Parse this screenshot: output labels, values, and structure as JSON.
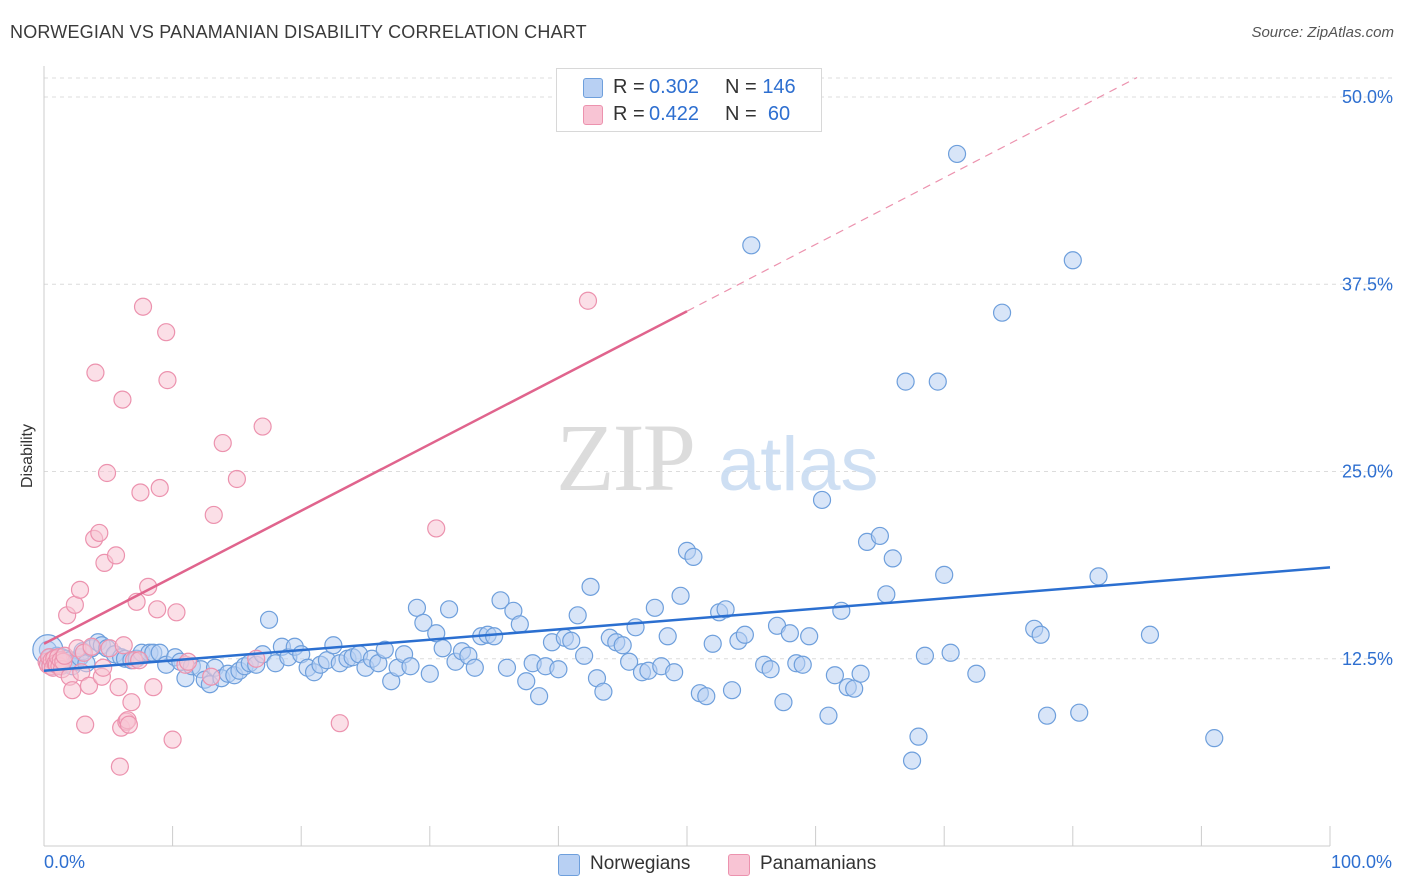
{
  "title": "NORWEGIAN VS PANAMANIAN DISABILITY CORRELATION CHART",
  "source": "Source: ZipAtlas.com",
  "watermark": {
    "zip": "ZIP",
    "atlas": "atlas"
  },
  "legend_top": {
    "rows": [
      {
        "r_label": "R =",
        "r_value": "0.302",
        "n_label": "N =",
        "n_value": "146"
      },
      {
        "r_label": "R =",
        "r_value": "0.422",
        "n_label": "N =",
        "n_value": "60"
      }
    ]
  },
  "legend_bottom": [
    "Norwegians",
    "Panamanians"
  ],
  "colors": {
    "norwegians_fill": "#b8d0f3",
    "norwegians_stroke": "#6e9fdc",
    "norwegians_line": "#2b6fd0",
    "panamanians_fill": "#f8c4d4",
    "panamanians_stroke": "#ec92ae",
    "panamanians_line": "#e0648d",
    "grid": "#dcdcdc",
    "axis_label": "#2e6fd0"
  },
  "chart_data": {
    "type": "scatter",
    "title": "NORWEGIAN VS PANAMANIAN DISABILITY CORRELATION CHART",
    "xlabel": "",
    "ylabel": "Disability",
    "xlim": [
      0,
      100
    ],
    "ylim": [
      0,
      50
    ],
    "x_tick_labels": [
      "0.0%",
      "100.0%"
    ],
    "y_ticks": [
      12.5,
      25.0,
      37.5,
      50.0
    ],
    "y_tick_labels": [
      "12.5%",
      "25.0%",
      "37.5%",
      "50.0%"
    ],
    "grid": true,
    "legend_placement": "top-center",
    "series": [
      {
        "name": "Norwegians",
        "r": 0.302,
        "n": 146,
        "trend": {
          "x": [
            0,
            100
          ],
          "y": [
            11.7,
            18.6
          ]
        },
        "points": [
          [
            0.3,
            13.1
          ],
          [
            0.4,
            12.3
          ],
          [
            0.5,
            12.6
          ],
          [
            0.6,
            12.0
          ],
          [
            0.7,
            12.4
          ],
          [
            0.8,
            12.5
          ],
          [
            0.9,
            12.1
          ],
          [
            1.0,
            12.7
          ],
          [
            1.1,
            12.2
          ],
          [
            1.2,
            12.4
          ],
          [
            1.3,
            12.0
          ],
          [
            1.4,
            12.6
          ],
          [
            1.5,
            12.3
          ],
          [
            1.6,
            12.1
          ],
          [
            1.7,
            12.5
          ],
          [
            1.8,
            12.2
          ],
          [
            2.0,
            12.4
          ],
          [
            2.2,
            12.0
          ],
          [
            2.5,
            12.3
          ],
          [
            2.8,
            12.6
          ],
          [
            3.0,
            13.0
          ],
          [
            3.3,
            12.2
          ],
          [
            3.7,
            13.2
          ],
          [
            4.2,
            13.6
          ],
          [
            4.5,
            13.4
          ],
          [
            4.9,
            13.2
          ],
          [
            5.5,
            12.8
          ],
          [
            6.0,
            12.6
          ],
          [
            6.3,
            12.5
          ],
          [
            6.8,
            12.4
          ],
          [
            7.2,
            12.5
          ],
          [
            7.6,
            12.9
          ],
          [
            8.2,
            12.9
          ],
          [
            8.5,
            12.9
          ],
          [
            9.0,
            12.9
          ],
          [
            9.5,
            12.1
          ],
          [
            10.2,
            12.6
          ],
          [
            10.6,
            12.3
          ],
          [
            11.0,
            11.2
          ],
          [
            11.5,
            12.0
          ],
          [
            12.2,
            11.8
          ],
          [
            12.5,
            11.1
          ],
          [
            12.9,
            10.8
          ],
          [
            13.3,
            11.9
          ],
          [
            13.8,
            11.2
          ],
          [
            14.3,
            11.5
          ],
          [
            14.8,
            11.4
          ],
          [
            15.2,
            11.7
          ],
          [
            15.6,
            12.0
          ],
          [
            16.0,
            12.2
          ],
          [
            16.5,
            12.1
          ],
          [
            17.0,
            12.8
          ],
          [
            17.5,
            15.1
          ],
          [
            18.0,
            12.2
          ],
          [
            18.5,
            13.3
          ],
          [
            19.0,
            12.6
          ],
          [
            19.5,
            13.3
          ],
          [
            20.0,
            12.8
          ],
          [
            20.5,
            11.9
          ],
          [
            21.0,
            11.6
          ],
          [
            21.5,
            12.1
          ],
          [
            22.0,
            12.4
          ],
          [
            22.5,
            13.4
          ],
          [
            23.0,
            12.2
          ],
          [
            23.6,
            12.5
          ],
          [
            24.0,
            12.6
          ],
          [
            24.5,
            12.8
          ],
          [
            25.0,
            11.9
          ],
          [
            25.5,
            12.5
          ],
          [
            26.0,
            12.2
          ],
          [
            26.5,
            13.1
          ],
          [
            27.0,
            11.0
          ],
          [
            27.5,
            11.9
          ],
          [
            28.0,
            12.8
          ],
          [
            28.5,
            12.0
          ],
          [
            29.0,
            15.9
          ],
          [
            29.5,
            14.9
          ],
          [
            30.0,
            11.5
          ],
          [
            30.5,
            14.2
          ],
          [
            31.0,
            13.2
          ],
          [
            31.5,
            15.8
          ],
          [
            32.0,
            12.3
          ],
          [
            32.5,
            13.0
          ],
          [
            33.0,
            12.7
          ],
          [
            33.5,
            11.9
          ],
          [
            34.0,
            14.0
          ],
          [
            34.5,
            14.1
          ],
          [
            35.0,
            14.0
          ],
          [
            35.5,
            16.4
          ],
          [
            36.0,
            11.9
          ],
          [
            36.5,
            15.7
          ],
          [
            37.0,
            14.8
          ],
          [
            37.5,
            11.0
          ],
          [
            38.0,
            12.2
          ],
          [
            38.5,
            10.0
          ],
          [
            39.0,
            12.0
          ],
          [
            39.5,
            13.6
          ],
          [
            40.0,
            11.8
          ],
          [
            40.5,
            13.9
          ],
          [
            41.0,
            13.7
          ],
          [
            41.5,
            15.4
          ],
          [
            42.0,
            12.7
          ],
          [
            42.5,
            17.3
          ],
          [
            43.0,
            11.2
          ],
          [
            43.5,
            10.3
          ],
          [
            44.0,
            13.9
          ],
          [
            44.5,
            13.6
          ],
          [
            45.0,
            13.4
          ],
          [
            45.5,
            12.3
          ],
          [
            46.0,
            14.6
          ],
          [
            46.5,
            11.6
          ],
          [
            47.0,
            11.7
          ],
          [
            47.5,
            15.9
          ],
          [
            48.0,
            12.0
          ],
          [
            48.5,
            14.0
          ],
          [
            49.0,
            11.6
          ],
          [
            49.5,
            16.7
          ],
          [
            50.0,
            19.7
          ],
          [
            50.5,
            19.3
          ],
          [
            51.0,
            10.2
          ],
          [
            51.5,
            10.0
          ],
          [
            52.0,
            13.5
          ],
          [
            52.5,
            15.6
          ],
          [
            53.0,
            15.8
          ],
          [
            53.5,
            10.4
          ],
          [
            54.0,
            13.7
          ],
          [
            54.5,
            14.1
          ],
          [
            55.0,
            40.1
          ],
          [
            56.0,
            12.1
          ],
          [
            56.5,
            11.8
          ],
          [
            57.0,
            14.7
          ],
          [
            57.5,
            9.6
          ],
          [
            58.0,
            14.2
          ],
          [
            58.5,
            12.2
          ],
          [
            59.0,
            12.1
          ],
          [
            59.5,
            14.0
          ],
          [
            60.5,
            23.1
          ],
          [
            61.0,
            8.7
          ],
          [
            61.5,
            11.4
          ],
          [
            62.0,
            15.7
          ],
          [
            62.5,
            10.6
          ],
          [
            63.0,
            10.5
          ],
          [
            63.5,
            11.5
          ],
          [
            64.0,
            20.3
          ],
          [
            65.0,
            20.7
          ],
          [
            65.5,
            16.8
          ],
          [
            66.0,
            19.2
          ],
          [
            67.0,
            31.0
          ],
          [
            67.5,
            5.7
          ],
          [
            68.0,
            7.3
          ],
          [
            68.5,
            12.7
          ],
          [
            69.5,
            31.0
          ],
          [
            70.0,
            18.1
          ],
          [
            70.5,
            12.9
          ],
          [
            71.0,
            46.2
          ],
          [
            72.5,
            11.5
          ],
          [
            74.5,
            35.6
          ],
          [
            77.0,
            14.5
          ],
          [
            77.5,
            14.1
          ],
          [
            78.0,
            8.7
          ],
          [
            80.0,
            39.1
          ],
          [
            80.5,
            8.9
          ],
          [
            82.0,
            18.0
          ],
          [
            86.0,
            14.1
          ],
          [
            91.0,
            7.2
          ]
        ]
      },
      {
        "name": "Panamanians",
        "r": 0.422,
        "n": 60,
        "trend": {
          "x": [
            0,
            50
          ],
          "y": [
            13.5,
            35.7
          ]
        },
        "trend_dashed": {
          "x": [
            50,
            85
          ],
          "y": [
            35.7,
            51.3
          ]
        },
        "points": [
          [
            0.2,
            12.3
          ],
          [
            0.3,
            12.1
          ],
          [
            0.4,
            12.6
          ],
          [
            0.5,
            12.0
          ],
          [
            0.6,
            12.4
          ],
          [
            0.7,
            11.9
          ],
          [
            0.8,
            12.5
          ],
          [
            0.9,
            12.2
          ],
          [
            1.0,
            12.1
          ],
          [
            1.1,
            12.6
          ],
          [
            1.2,
            12.0
          ],
          [
            1.3,
            12.4
          ],
          [
            1.4,
            11.8
          ],
          [
            1.5,
            12.3
          ],
          [
            1.6,
            12.7
          ],
          [
            1.8,
            15.4
          ],
          [
            2.0,
            11.3
          ],
          [
            2.2,
            10.4
          ],
          [
            2.4,
            16.1
          ],
          [
            2.6,
            13.2
          ],
          [
            2.8,
            17.1
          ],
          [
            2.9,
            11.6
          ],
          [
            3.1,
            12.9
          ],
          [
            3.2,
            8.1
          ],
          [
            3.5,
            10.7
          ],
          [
            3.7,
            13.3
          ],
          [
            3.9,
            20.5
          ],
          [
            4.0,
            31.6
          ],
          [
            4.3,
            20.9
          ],
          [
            4.5,
            11.3
          ],
          [
            4.6,
            11.9
          ],
          [
            4.7,
            18.9
          ],
          [
            4.9,
            24.9
          ],
          [
            5.1,
            13.2
          ],
          [
            5.6,
            19.4
          ],
          [
            5.8,
            10.6
          ],
          [
            5.9,
            5.3
          ],
          [
            6.0,
            7.9
          ],
          [
            6.1,
            29.8
          ],
          [
            6.2,
            13.4
          ],
          [
            6.4,
            8.3
          ],
          [
            6.5,
            8.4
          ],
          [
            6.6,
            8.1
          ],
          [
            6.8,
            9.6
          ],
          [
            7.0,
            12.4
          ],
          [
            7.2,
            16.3
          ],
          [
            7.4,
            12.4
          ],
          [
            7.5,
            23.6
          ],
          [
            7.7,
            36.0
          ],
          [
            8.1,
            17.3
          ],
          [
            8.5,
            10.6
          ],
          [
            8.8,
            15.8
          ],
          [
            9.0,
            23.9
          ],
          [
            9.5,
            34.3
          ],
          [
            9.6,
            31.1
          ],
          [
            10.0,
            7.1
          ],
          [
            10.3,
            15.6
          ],
          [
            11.0,
            12.1
          ],
          [
            11.2,
            12.3
          ],
          [
            13.0,
            11.3
          ],
          [
            13.2,
            22.1
          ],
          [
            13.9,
            26.9
          ],
          [
            15.0,
            24.5
          ],
          [
            16.5,
            12.5
          ],
          [
            17.0,
            28.0
          ],
          [
            23.0,
            8.2
          ],
          [
            30.5,
            21.2
          ],
          [
            42.3,
            36.4
          ]
        ]
      }
    ]
  }
}
